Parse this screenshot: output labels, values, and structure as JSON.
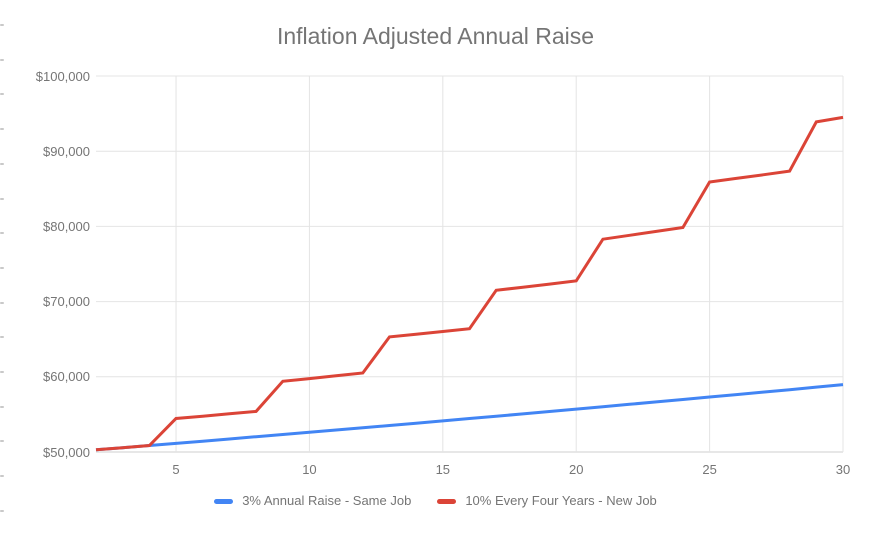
{
  "title": "Inflation Adjusted Annual Raise",
  "chart_data": {
    "type": "line",
    "title": "Inflation Adjusted Annual Raise",
    "xlabel": "",
    "ylabel": "",
    "x": [
      1,
      2,
      3,
      4,
      5,
      6,
      7,
      8,
      9,
      10,
      11,
      12,
      13,
      14,
      15,
      16,
      17,
      18,
      19,
      20,
      21,
      22,
      23,
      24,
      25,
      26,
      27,
      28,
      29,
      30
    ],
    "series": [
      {
        "name": "3% Annual Raise - Same Job",
        "color": "#4285f4",
        "values": [
          50000,
          50290,
          50570,
          50860,
          51150,
          51440,
          51730,
          52030,
          52330,
          52620,
          52920,
          53230,
          53530,
          53830,
          54140,
          54450,
          54760,
          55070,
          55390,
          55700,
          56020,
          56340,
          56660,
          56980,
          57310,
          57630,
          57960,
          58290,
          58630,
          58960
        ]
      },
      {
        "name": "10% Every Four Years - New Job",
        "color": "#db4437",
        "values": [
          50000,
          50290,
          50570,
          50860,
          54450,
          54760,
          55080,
          55400,
          59400,
          59760,
          60130,
          60500,
          65300,
          65660,
          66030,
          66400,
          71500,
          71920,
          72330,
          72750,
          78300,
          78810,
          79330,
          79850,
          85900,
          86380,
          86860,
          87350,
          93900,
          94500
        ]
      }
    ],
    "xlim": [
      2,
      30
    ],
    "ylim": [
      50000,
      100000
    ],
    "x_ticks": [
      5,
      10,
      15,
      20,
      25,
      30
    ],
    "x_tick_labels": [
      "5",
      "10",
      "15",
      "20",
      "25",
      "30"
    ],
    "y_ticks": [
      50000,
      60000,
      70000,
      80000,
      90000,
      100000
    ],
    "y_tick_labels": [
      "$50,000",
      "$60,000",
      "$70,000",
      "$80,000",
      "$90,000",
      "$100,000"
    ],
    "grid": true,
    "legend_position": "bottom"
  },
  "appearance": {
    "title_color": "#757575",
    "axis_label_color": "#757575",
    "legend_text_color": "#757575",
    "gridline_color": "#e4e4e4",
    "baseline_color": "#cfcfcf",
    "background_color": "#ffffff"
  }
}
